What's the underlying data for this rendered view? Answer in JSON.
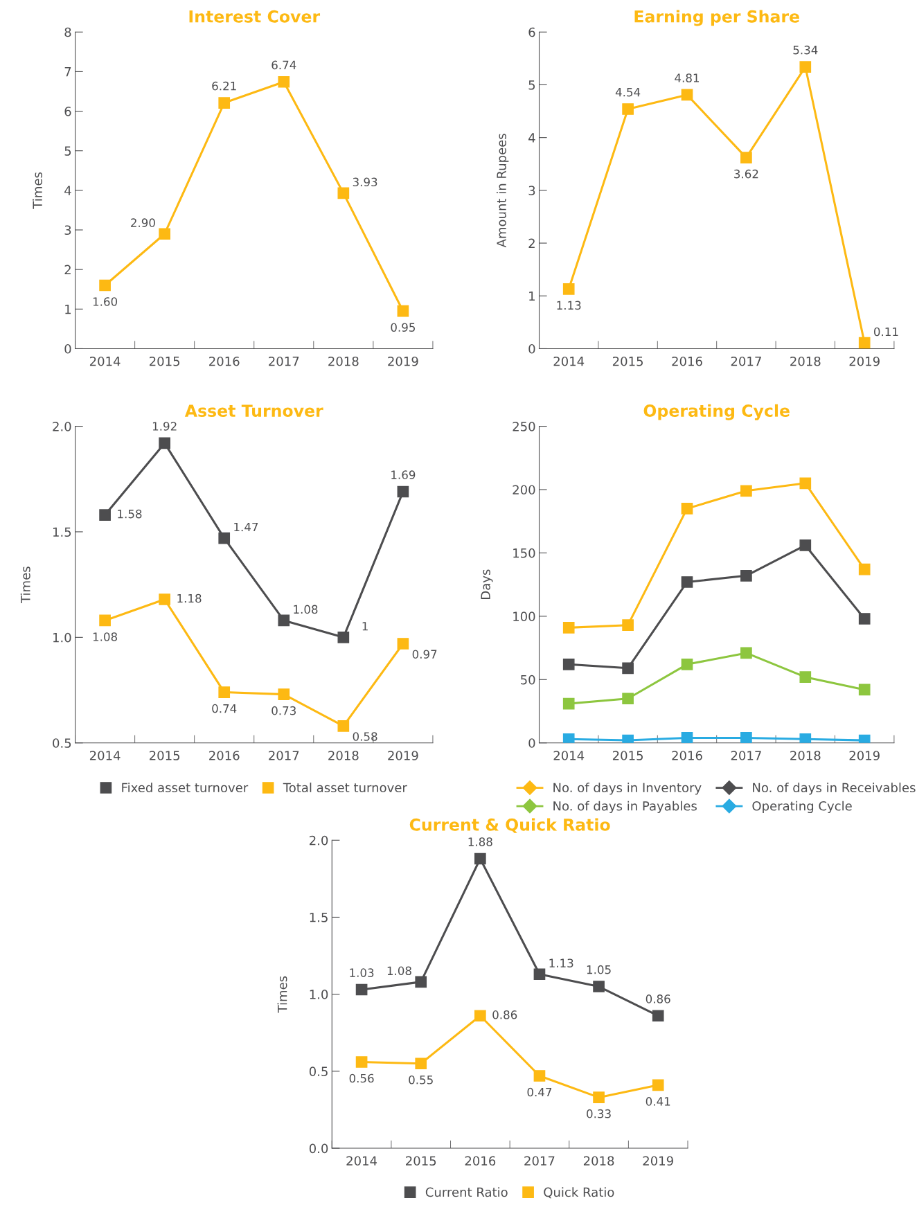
{
  "chart_data": [
    {
      "type": "line",
      "title": "Interest Cover",
      "ylabel": "Times",
      "categories": [
        "2014",
        "2015",
        "2016",
        "2017",
        "2018",
        "2019"
      ],
      "ylim": [
        0,
        8
      ],
      "yticks": [
        0,
        1,
        2,
        3,
        4,
        5,
        6,
        7,
        8
      ],
      "marker": "square",
      "line_style": "solid",
      "grid": false,
      "legend": false,
      "series": [
        {
          "color": "#fdb913",
          "values": [
            1.6,
            2.9,
            6.21,
            6.74,
            3.93,
            0.95
          ],
          "value_labels": [
            "1.60",
            "2.90",
            "6.21",
            "6.74",
            "3.93",
            "0.95"
          ]
        }
      ]
    },
    {
      "type": "line",
      "title": "Earning per Share",
      "ylabel": "Amount in Rupees",
      "categories": [
        "2014",
        "2015",
        "2016",
        "2017",
        "2018",
        "2019"
      ],
      "ylim": [
        0,
        6
      ],
      "yticks": [
        0,
        1,
        2,
        3,
        4,
        5,
        6
      ],
      "marker": "square",
      "line_style": "solid",
      "grid": false,
      "legend": false,
      "series": [
        {
          "color": "#fdb913",
          "values": [
            1.13,
            4.54,
            4.81,
            3.62,
            5.34,
            0.11
          ],
          "value_labels": [
            "1.13",
            "4.54",
            "4.81",
            "3.62",
            "5.34",
            "0.11"
          ]
        }
      ]
    },
    {
      "type": "line",
      "title": "Asset Turnover",
      "ylabel": "Times",
      "categories": [
        "2014",
        "2015",
        "2016",
        "2017",
        "2018",
        "2019"
      ],
      "ylim": [
        0.5,
        2.0
      ],
      "yticks": [
        {
          "value": 0.5,
          "label": "0.5"
        },
        {
          "value": 1.0,
          "label": "1.0"
        },
        {
          "value": 1.5,
          "label": "1.5"
        },
        {
          "value": 2.0,
          "label": "2.0"
        }
      ],
      "marker": "square",
      "line_style": "solid",
      "grid": false,
      "legend": "bottom",
      "series": [
        {
          "name": "Fixed asset turnover",
          "color": "#4d4d4f",
          "values": [
            1.58,
            1.92,
            1.47,
            1.08,
            1.0,
            1.69
          ],
          "value_labels": [
            "1.58",
            "1.92",
            "1.47",
            "1.08",
            "1",
            "1.69"
          ]
        },
        {
          "name": "Total asset turnover",
          "color": "#fdb913",
          "values": [
            1.08,
            1.18,
            0.74,
            0.73,
            0.58,
            0.97
          ],
          "value_labels": [
            "1.08",
            "1.18",
            "0.74",
            "0.73",
            "0.58",
            "0.97"
          ]
        }
      ]
    },
    {
      "type": "line",
      "title": "Operating Cycle",
      "ylabel": "Days",
      "categories": [
        "2014",
        "2015",
        "2016",
        "2017",
        "2018",
        "2019"
      ],
      "ylim": [
        0,
        250
      ],
      "yticks": [
        0,
        50,
        100,
        150,
        200,
        250
      ],
      "marker": "square",
      "line_style": "solid",
      "grid": false,
      "legend": "bottom",
      "series": [
        {
          "name": "No. of days in Inventory",
          "color": "#fdb913",
          "values": [
            91,
            93,
            185,
            199,
            205,
            137
          ]
        },
        {
          "name": "No. of days in Receivables",
          "color": "#4d4d4f",
          "values": [
            62,
            59,
            127,
            132,
            156,
            98
          ]
        },
        {
          "name": "No. of days in Payables",
          "color": "#8dc63f",
          "values": [
            31,
            35,
            62,
            71,
            52,
            42
          ]
        },
        {
          "name": "Operating Cycle",
          "color": "#29abe2",
          "values": [
            3,
            2,
            4,
            4,
            3,
            2
          ]
        }
      ]
    },
    {
      "type": "line",
      "title": "Current & Quick Ratio",
      "ylabel": "Times",
      "categories": [
        "2014",
        "2015",
        "2016",
        "2017",
        "2018",
        "2019"
      ],
      "ylim": [
        0.0,
        2.0
      ],
      "yticks": [
        {
          "value": 0.0,
          "label": "0.0"
        },
        {
          "value": 0.5,
          "label": "0.5"
        },
        {
          "value": 1.0,
          "label": "1.0"
        },
        {
          "value": 1.5,
          "label": "1.5"
        },
        {
          "value": 2.0,
          "label": "2.0"
        }
      ],
      "marker": "square",
      "line_style": "solid",
      "grid": false,
      "legend": "bottom",
      "series": [
        {
          "name": "Current Ratio",
          "color": "#4d4d4f",
          "values": [
            1.03,
            1.08,
            1.88,
            1.13,
            1.05,
            0.86
          ],
          "value_labels": [
            "1.03",
            "1.08",
            "1.88",
            "1.13",
            "1.05",
            "0.86"
          ]
        },
        {
          "name": "Quick Ratio",
          "color": "#fdb913",
          "values": [
            0.56,
            0.55,
            0.86,
            0.47,
            0.33,
            0.41
          ],
          "value_labels": [
            "0.56",
            "0.55",
            "0.86",
            "0.47",
            "0.33",
            "0.41"
          ]
        }
      ]
    }
  ]
}
